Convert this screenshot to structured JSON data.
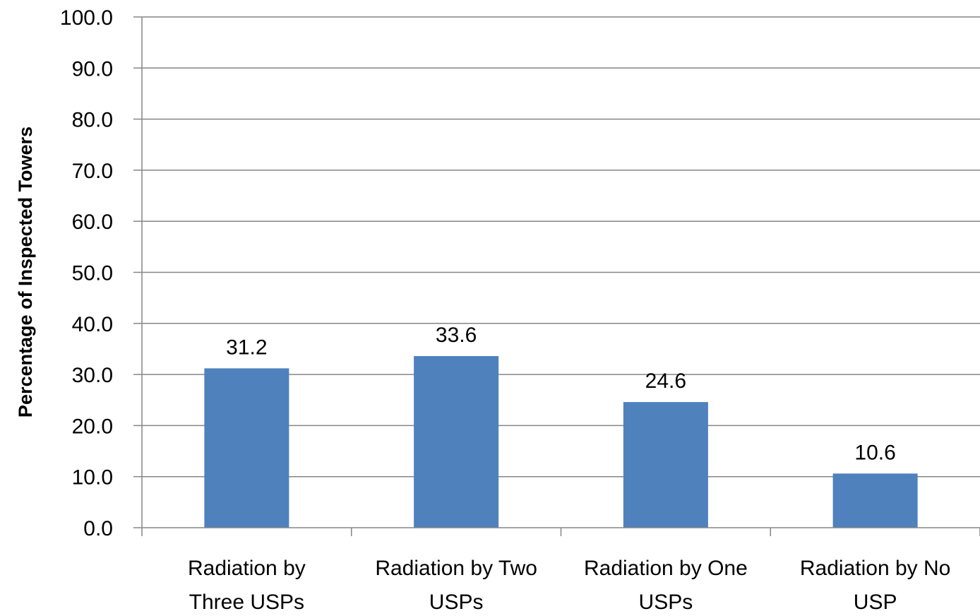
{
  "chart_data": {
    "type": "bar",
    "categories": [
      [
        "Radiation by",
        "Three USPs"
      ],
      [
        "Radiation by Two",
        "USPs"
      ],
      [
        "Radiation by One",
        "USPs"
      ],
      [
        "Radiation by No",
        "USP"
      ]
    ],
    "values": [
      31.2,
      33.6,
      24.6,
      10.6
    ],
    "data_labels": [
      "31.2",
      "33.6",
      "24.6",
      "10.6"
    ],
    "title": "",
    "xlabel": "",
    "ylabel": "Percentage of Inspected Towers",
    "ylim": [
      0,
      100
    ],
    "yticks": [
      "0.0",
      "10.0",
      "20.0",
      "30.0",
      "40.0",
      "50.0",
      "60.0",
      "70.0",
      "80.0",
      "90.0",
      "100.0"
    ],
    "grid": true,
    "legend": "none",
    "colors": {
      "bar": "#4f81bd",
      "grid": "#868686",
      "axis": "#868686"
    }
  }
}
